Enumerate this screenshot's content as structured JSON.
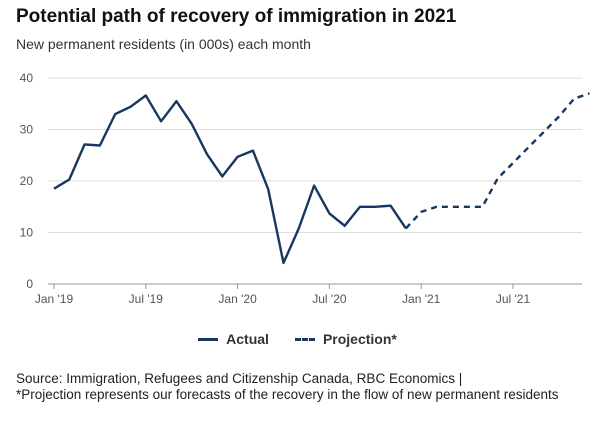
{
  "title": "Potential path of recovery of immigration in 2021",
  "subtitle": "New permanent residents (in 000s) each month",
  "source_line1": "Source:  Immigration, Refugees and Citizenship Canada, RBC Economics |",
  "source_line2": "*Projection represents our forecasts of the recovery in the flow of new permanent residents",
  "chart_data": {
    "type": "line",
    "title": "Potential path of recovery of immigration in 2021",
    "subtitle": "New permanent residents (in 000s) each month",
    "ylim": [
      0,
      40
    ],
    "yticks": [
      0,
      10,
      20,
      30,
      40
    ],
    "x_tick_labels": [
      "Jan '19",
      "Jul '19",
      "Jan '20",
      "Jul '20",
      "Jan '21",
      "Jul '21"
    ],
    "grid": true,
    "legend_position": "bottom",
    "color": "#17375e",
    "series": [
      {
        "name": "Actual",
        "style": "solid",
        "x": [
          "2019-01",
          "2019-02",
          "2019-03",
          "2019-04",
          "2019-05",
          "2019-06",
          "2019-07",
          "2019-08",
          "2019-09",
          "2019-10",
          "2019-11",
          "2019-12",
          "2020-01",
          "2020-02",
          "2020-03",
          "2020-04",
          "2020-05",
          "2020-06",
          "2020-07",
          "2020-08",
          "2020-09",
          "2020-10",
          "2020-11",
          "2020-12"
        ],
        "values": [
          18.5,
          20.3,
          27.1,
          26.9,
          33.0,
          34.4,
          36.6,
          31.6,
          35.5,
          31.1,
          25.2,
          20.9,
          24.7,
          25.9,
          18.4,
          4.1,
          10.8,
          19.1,
          13.7,
          11.3,
          15.0,
          15.0,
          15.2,
          10.8
        ]
      },
      {
        "name": "Projection*",
        "style": "dashed",
        "x": [
          "2020-12",
          "2021-01",
          "2021-02",
          "2021-03",
          "2021-04",
          "2021-05",
          "2021-06",
          "2021-07",
          "2021-08",
          "2021-09",
          "2021-10",
          "2021-11",
          "2021-12"
        ],
        "values": [
          10.8,
          14.0,
          15.0,
          15.0,
          15.0,
          15.0,
          20.5,
          23.5,
          26.5,
          29.5,
          32.5,
          36.0,
          37.0
        ]
      }
    ]
  }
}
